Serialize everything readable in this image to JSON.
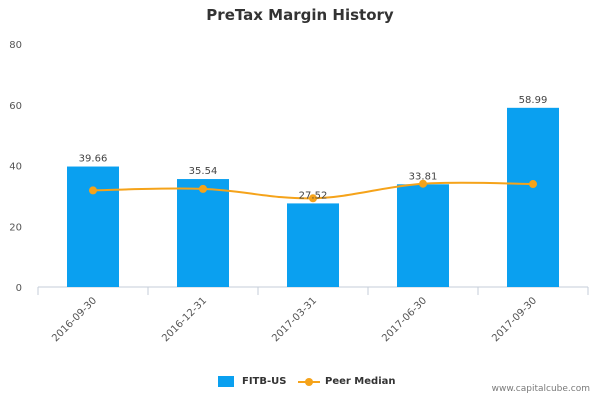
{
  "chart_data": {
    "type": "bar",
    "title": "PreTax Margin History",
    "categories": [
      "2016-09-30",
      "2016-12-31",
      "2017-03-31",
      "2017-06-30",
      "2017-09-30"
    ],
    "series": [
      {
        "name": "FITB-US",
        "kind": "bar",
        "color": "#0aa0f0",
        "values": [
          39.66,
          35.54,
          27.52,
          33.81,
          58.99
        ],
        "labels": [
          "39.66",
          "35.54",
          "27.52",
          "33.81",
          "58.99"
        ]
      },
      {
        "name": "Peer Median",
        "kind": "line",
        "color": "#f5a31a",
        "values": [
          31.8,
          32.3,
          29.2,
          34.0,
          33.9
        ]
      }
    ],
    "ylim": [
      0,
      80
    ],
    "yticks": [
      0,
      20,
      40,
      60,
      80
    ],
    "grid": false,
    "legend_position": "bottom-center"
  },
  "watermark": "www.capitalcube.com"
}
